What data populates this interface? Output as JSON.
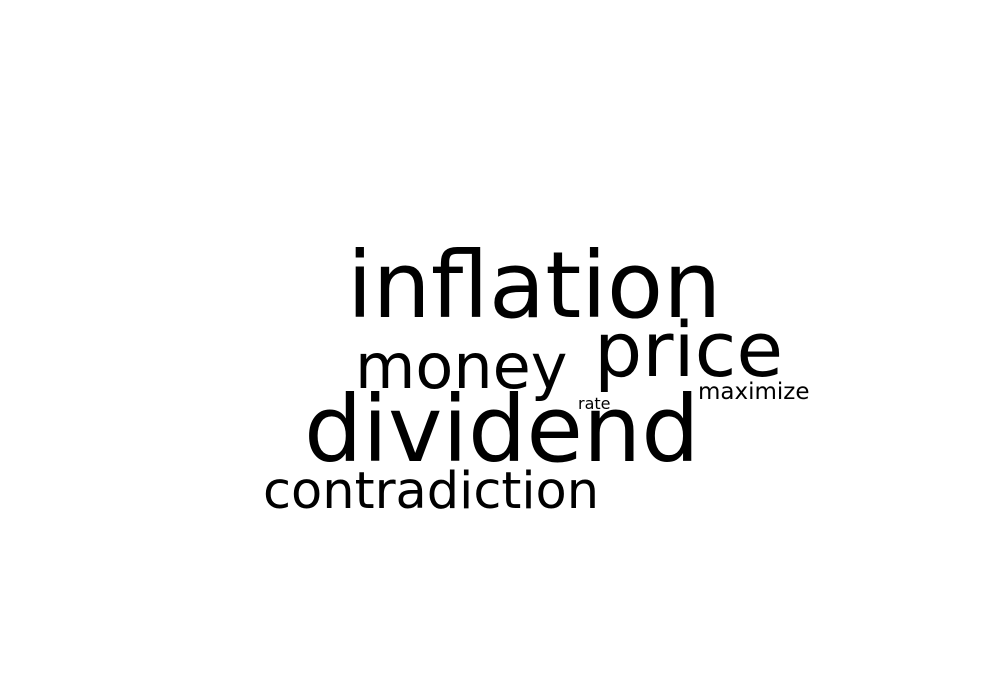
{
  "words": {
    "inflation": "inflation",
    "price": "price",
    "money": "money",
    "maximize": "maximize",
    "rate": "rate",
    "dividend": "dividend",
    "contradiction": "contradiction"
  },
  "colors": {
    "background": "#ffffff",
    "text": "#000000"
  }
}
